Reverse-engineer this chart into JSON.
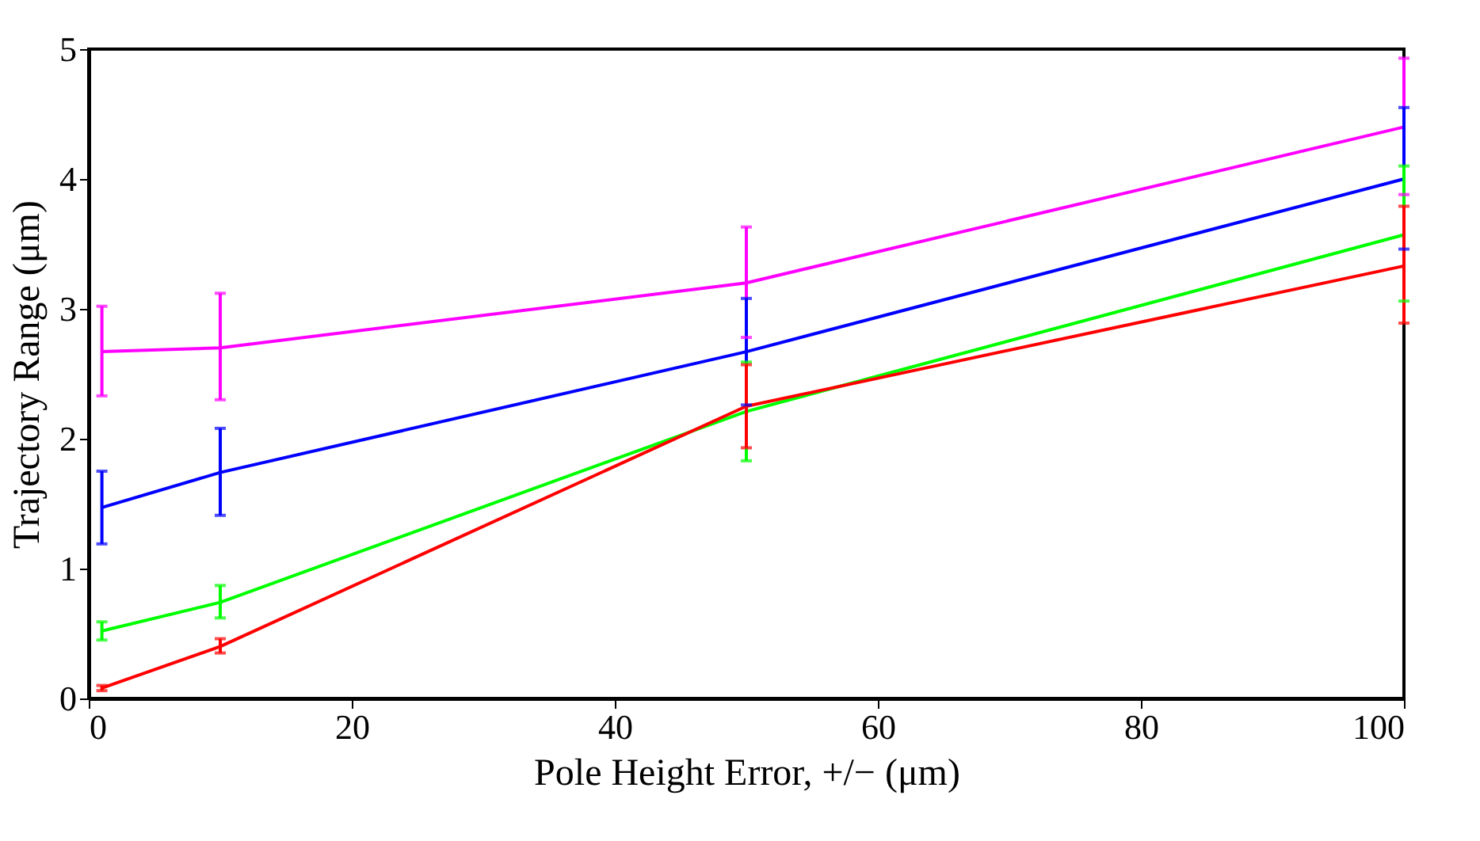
{
  "chart_data": {
    "type": "line",
    "xlabel": "Pole Height Error, +/− (μm)",
    "ylabel": "Trajectory Range  (μm)",
    "x": [
      1,
      10,
      50,
      100
    ],
    "xlim": [
      0,
      100
    ],
    "ylim": [
      0,
      5
    ],
    "xticks": [
      0,
      20,
      40,
      60,
      80,
      100
    ],
    "yticks": [
      0,
      1,
      2,
      3,
      4,
      5
    ],
    "grid": false,
    "legend": false,
    "marker": "none",
    "line_style": "solid",
    "series": [
      {
        "color": "#ff00ff",
        "values": [
          2.67,
          2.7,
          3.2,
          4.4
        ],
        "errors": [
          [
            2.33,
            3.02
          ],
          [
            2.3,
            3.12
          ],
          [
            2.78,
            3.63
          ],
          [
            3.88,
            4.93
          ]
        ]
      },
      {
        "color": "#0000ff",
        "values": [
          1.47,
          1.74,
          2.67,
          4.0
        ],
        "errors": [
          [
            1.19,
            1.75
          ],
          [
            1.41,
            2.08
          ],
          [
            2.26,
            3.08
          ],
          [
            3.46,
            4.55
          ]
        ]
      },
      {
        "color": "#00ff00",
        "values": [
          0.52,
          0.74,
          2.21,
          3.57
        ],
        "errors": [
          [
            0.45,
            0.59
          ],
          [
            0.62,
            0.87
          ],
          [
            1.83,
            2.59
          ],
          [
            3.06,
            4.1
          ]
        ]
      },
      {
        "color": "#ff0000",
        "values": [
          0.08,
          0.4,
          2.25,
          3.33
        ],
        "errors": [
          [
            0.06,
            0.1
          ],
          [
            0.35,
            0.46
          ],
          [
            1.93,
            2.57
          ],
          [
            2.89,
            3.79
          ]
        ]
      }
    ]
  }
}
